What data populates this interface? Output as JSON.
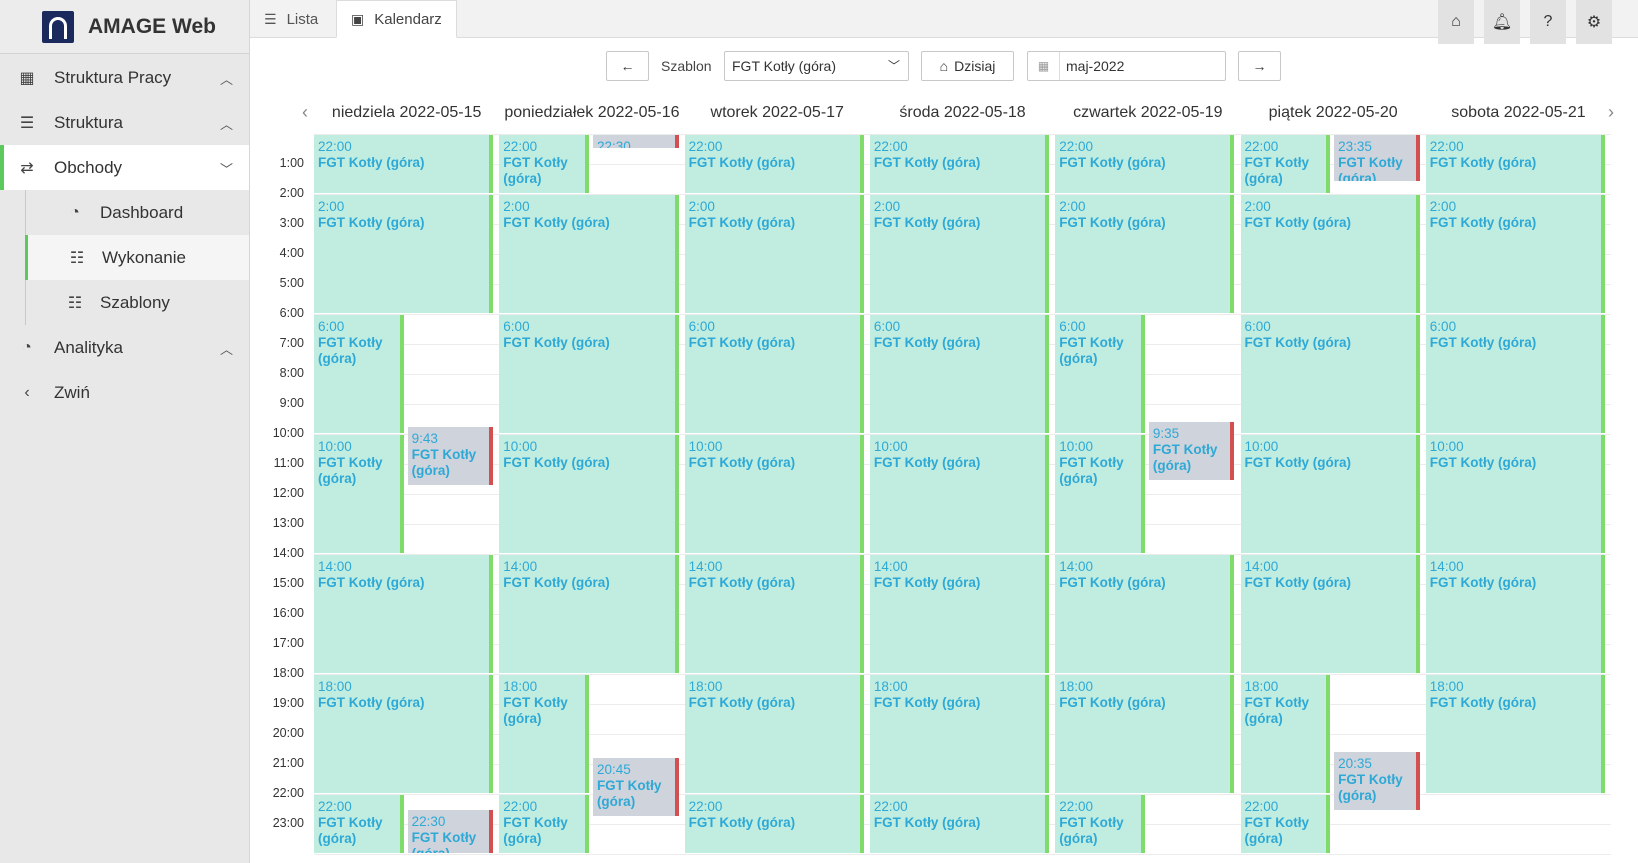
{
  "brand": {
    "name": "AMAGE Web"
  },
  "nav": [
    {
      "label": "Struktura Pracy"
    },
    {
      "label": "Struktura"
    },
    {
      "label": "Obchody"
    },
    {
      "label": "Dashboard"
    },
    {
      "label": "Wykonanie"
    },
    {
      "label": "Szablony"
    },
    {
      "label": "Analityka"
    },
    {
      "label": "Zwiń"
    }
  ],
  "tabs": {
    "lista": "Lista",
    "kalendarz": "Kalendarz"
  },
  "toolbar": {
    "szablon_label": "Szablon",
    "szablon_value": "FGT Kotły (góra)",
    "today_label": "Dzisiaj",
    "month_value": "maj-2022"
  },
  "days": [
    "niedziela 2022-05-15",
    "poniedziałek 2022-05-16",
    "wtorek 2022-05-17",
    "środa 2022-05-18",
    "czwartek 2022-05-19",
    "piątek 2022-05-20",
    "sobota 2022-05-21"
  ],
  "hours": [
    "1:00",
    "2:00",
    "3:00",
    "4:00",
    "5:00",
    "6:00",
    "7:00",
    "8:00",
    "9:00",
    "10:00",
    "11:00",
    "12:00",
    "13:00",
    "14:00",
    "15:00",
    "16:00",
    "17:00",
    "18:00",
    "19:00",
    "20:00",
    "21:00",
    "22:00",
    "23:00"
  ],
  "event_name": "FGT Kotły (góra)",
  "events": [
    {
      "day": 0,
      "start": "22:00",
      "from": 0,
      "to": 2,
      "col": 0,
      "cols": 1,
      "status": "done"
    },
    {
      "day": 0,
      "start": "2:00",
      "from": 2,
      "to": 6,
      "col": 0,
      "cols": 1,
      "status": "done"
    },
    {
      "day": 0,
      "start": "6:00",
      "from": 6,
      "to": 10,
      "col": 0,
      "cols": 2,
      "status": "done"
    },
    {
      "day": 0,
      "start": "9:43",
      "from": 9.72,
      "to": 11.72,
      "col": 1,
      "cols": 2,
      "status": "missed"
    },
    {
      "day": 0,
      "start": "10:00",
      "from": 10,
      "to": 14,
      "col": 0,
      "cols": 2,
      "status": "done"
    },
    {
      "day": 0,
      "start": "14:00",
      "from": 14,
      "to": 18,
      "col": 0,
      "cols": 1,
      "status": "done"
    },
    {
      "day": 0,
      "start": "18:00",
      "from": 18,
      "to": 22,
      "col": 0,
      "cols": 1,
      "status": "done"
    },
    {
      "day": 0,
      "start": "22:00",
      "from": 22,
      "to": 24,
      "col": 0,
      "cols": 2,
      "status": "done"
    },
    {
      "day": 0,
      "start": "22:30",
      "from": 22.5,
      "to": 24,
      "col": 1,
      "cols": 2,
      "status": "missed"
    },
    {
      "day": 1,
      "start": "22:00",
      "from": 0,
      "to": 2,
      "col": 0,
      "cols": 2,
      "status": "done"
    },
    {
      "day": 1,
      "start": "22:30",
      "from": 0,
      "to": 0.5,
      "col": 1,
      "cols": 2,
      "status": "missed"
    },
    {
      "day": 1,
      "start": "2:00",
      "from": 2,
      "to": 6,
      "col": 0,
      "cols": 1,
      "status": "done"
    },
    {
      "day": 1,
      "start": "6:00",
      "from": 6,
      "to": 10,
      "col": 0,
      "cols": 1,
      "status": "done"
    },
    {
      "day": 1,
      "start": "10:00",
      "from": 10,
      "to": 14,
      "col": 0,
      "cols": 1,
      "status": "done"
    },
    {
      "day": 1,
      "start": "14:00",
      "from": 14,
      "to": 18,
      "col": 0,
      "cols": 1,
      "status": "done"
    },
    {
      "day": 1,
      "start": "18:00",
      "from": 18,
      "to": 22,
      "col": 0,
      "cols": 2,
      "status": "done"
    },
    {
      "day": 1,
      "start": "20:45",
      "from": 20.75,
      "to": 22.75,
      "col": 1,
      "cols": 2,
      "status": "missed"
    },
    {
      "day": 1,
      "start": "22:00",
      "from": 22,
      "to": 24,
      "col": 0,
      "cols": 2,
      "status": "done"
    },
    {
      "day": 2,
      "start": "22:00",
      "from": 0,
      "to": 2,
      "col": 0,
      "cols": 1,
      "status": "done"
    },
    {
      "day": 2,
      "start": "2:00",
      "from": 2,
      "to": 6,
      "col": 0,
      "cols": 1,
      "status": "done"
    },
    {
      "day": 2,
      "start": "6:00",
      "from": 6,
      "to": 10,
      "col": 0,
      "cols": 1,
      "status": "done"
    },
    {
      "day": 2,
      "start": "10:00",
      "from": 10,
      "to": 14,
      "col": 0,
      "cols": 1,
      "status": "done"
    },
    {
      "day": 2,
      "start": "14:00",
      "from": 14,
      "to": 18,
      "col": 0,
      "cols": 1,
      "status": "done"
    },
    {
      "day": 2,
      "start": "18:00",
      "from": 18,
      "to": 22,
      "col": 0,
      "cols": 1,
      "status": "done"
    },
    {
      "day": 2,
      "start": "22:00",
      "from": 22,
      "to": 24,
      "col": 0,
      "cols": 1,
      "status": "done"
    },
    {
      "day": 3,
      "start": "22:00",
      "from": 0,
      "to": 2,
      "col": 0,
      "cols": 1,
      "status": "done"
    },
    {
      "day": 3,
      "start": "2:00",
      "from": 2,
      "to": 6,
      "col": 0,
      "cols": 1,
      "status": "done"
    },
    {
      "day": 3,
      "start": "6:00",
      "from": 6,
      "to": 10,
      "col": 0,
      "cols": 1,
      "status": "done"
    },
    {
      "day": 3,
      "start": "10:00",
      "from": 10,
      "to": 14,
      "col": 0,
      "cols": 1,
      "status": "done"
    },
    {
      "day": 3,
      "start": "14:00",
      "from": 14,
      "to": 18,
      "col": 0,
      "cols": 1,
      "status": "done"
    },
    {
      "day": 3,
      "start": "18:00",
      "from": 18,
      "to": 22,
      "col": 0,
      "cols": 1,
      "status": "done"
    },
    {
      "day": 3,
      "start": "22:00",
      "from": 22,
      "to": 24,
      "col": 0,
      "cols": 1,
      "status": "done"
    },
    {
      "day": 4,
      "start": "22:00",
      "from": 0,
      "to": 2,
      "col": 0,
      "cols": 1,
      "status": "done"
    },
    {
      "day": 4,
      "start": "2:00",
      "from": 2,
      "to": 6,
      "col": 0,
      "cols": 1,
      "status": "done"
    },
    {
      "day": 4,
      "start": "6:00",
      "from": 6,
      "to": 10,
      "col": 0,
      "cols": 2,
      "status": "done"
    },
    {
      "day": 4,
      "start": "9:35",
      "from": 9.58,
      "to": 11.58,
      "col": 1,
      "cols": 2,
      "status": "missed"
    },
    {
      "day": 4,
      "start": "10:00",
      "from": 10,
      "to": 14,
      "col": 0,
      "cols": 2,
      "status": "done"
    },
    {
      "day": 4,
      "start": "14:00",
      "from": 14,
      "to": 18,
      "col": 0,
      "cols": 1,
      "status": "done"
    },
    {
      "day": 4,
      "start": "18:00",
      "from": 18,
      "to": 22,
      "col": 0,
      "cols": 1,
      "status": "done"
    },
    {
      "day": 4,
      "start": "22:00",
      "from": 22,
      "to": 24,
      "col": 0,
      "cols": 2,
      "status": "done"
    },
    {
      "day": 5,
      "start": "22:00",
      "from": 0,
      "to": 2,
      "col": 0,
      "cols": 2,
      "status": "done"
    },
    {
      "day": 5,
      "start": "23:35",
      "from": 0,
      "to": 1.6,
      "col": 1,
      "cols": 2,
      "status": "missed"
    },
    {
      "day": 5,
      "start": "2:00",
      "from": 2,
      "to": 6,
      "col": 0,
      "cols": 1,
      "status": "done"
    },
    {
      "day": 5,
      "start": "6:00",
      "from": 6,
      "to": 10,
      "col": 0,
      "cols": 1,
      "status": "done"
    },
    {
      "day": 5,
      "start": "10:00",
      "from": 10,
      "to": 14,
      "col": 0,
      "cols": 1,
      "status": "done"
    },
    {
      "day": 5,
      "start": "14:00",
      "from": 14,
      "to": 18,
      "col": 0,
      "cols": 1,
      "status": "done"
    },
    {
      "day": 5,
      "start": "18:00",
      "from": 18,
      "to": 22,
      "col": 0,
      "cols": 2,
      "status": "done"
    },
    {
      "day": 5,
      "start": "20:35",
      "from": 20.58,
      "to": 22.58,
      "col": 1,
      "cols": 2,
      "status": "missed"
    },
    {
      "day": 5,
      "start": "22:00",
      "from": 22,
      "to": 24,
      "col": 0,
      "cols": 2,
      "status": "done"
    },
    {
      "day": 6,
      "start": "22:00",
      "from": 0,
      "to": 2,
      "col": 0,
      "cols": 1,
      "status": "done"
    },
    {
      "day": 6,
      "start": "2:00",
      "from": 2,
      "to": 6,
      "col": 0,
      "cols": 1,
      "status": "done"
    },
    {
      "day": 6,
      "start": "6:00",
      "from": 6,
      "to": 10,
      "col": 0,
      "cols": 1,
      "status": "done"
    },
    {
      "day": 6,
      "start": "10:00",
      "from": 10,
      "to": 14,
      "col": 0,
      "cols": 1,
      "status": "done"
    },
    {
      "day": 6,
      "start": "14:00",
      "from": 14,
      "to": 18,
      "col": 0,
      "cols": 1,
      "status": "done"
    },
    {
      "day": 6,
      "start": "18:00",
      "from": 18,
      "to": 22,
      "col": 0,
      "cols": 1,
      "status": "done"
    }
  ]
}
